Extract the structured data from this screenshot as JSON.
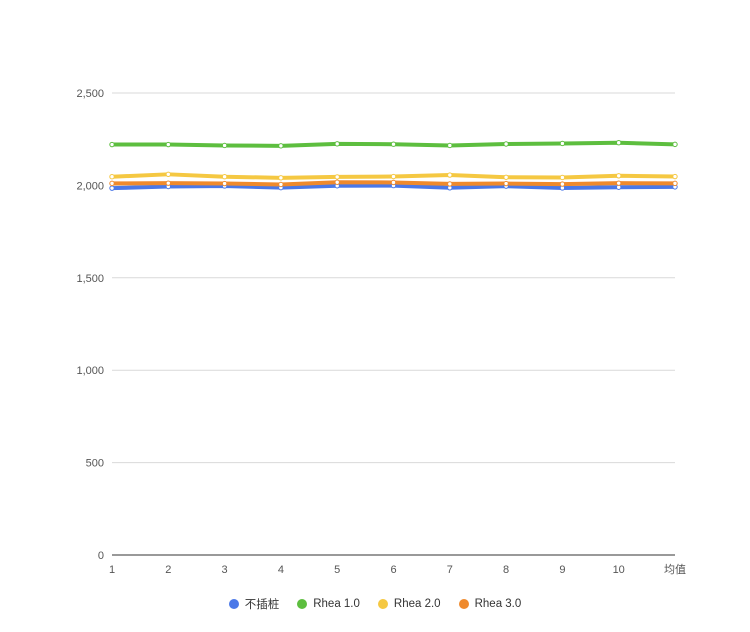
{
  "chart_data": {
    "type": "line",
    "categories": [
      "1",
      "2",
      "3",
      "4",
      "5",
      "6",
      "7",
      "8",
      "9",
      "10",
      "均值"
    ],
    "ylim": [
      0,
      2500
    ],
    "yticks": [
      {
        "value": 0,
        "label": "0"
      },
      {
        "value": 500,
        "label": "500"
      },
      {
        "value": 1000,
        "label": "1,000"
      },
      {
        "value": 1500,
        "label": "1,500"
      },
      {
        "value": 2000,
        "label": "2,000"
      },
      {
        "value": 2500,
        "label": "2,500"
      }
    ],
    "grid": true,
    "legend_position": "bottom",
    "series": [
      {
        "name": "不插桩",
        "color": "#4A78E8",
        "values": [
          1985,
          1994,
          1997,
          1988,
          1998,
          1999,
          1987,
          1996,
          1986,
          1990,
          1992
        ]
      },
      {
        "name": "Rhea 1.0",
        "color": "#5DBE3F",
        "values": [
          2221,
          2221,
          2216,
          2214,
          2225,
          2223,
          2216,
          2224,
          2227,
          2231,
          2222
        ]
      },
      {
        "name": "Rhea 2.0",
        "color": "#F5C842",
        "values": [
          2047,
          2060,
          2047,
          2041,
          2046,
          2048,
          2056,
          2044,
          2043,
          2052,
          2048
        ]
      },
      {
        "name": "Rhea 3.0",
        "color": "#EF8A2D",
        "values": [
          2011,
          2012,
          2010,
          2005,
          2017,
          2016,
          2008,
          2010,
          2007,
          2012,
          2011
        ]
      }
    ]
  }
}
